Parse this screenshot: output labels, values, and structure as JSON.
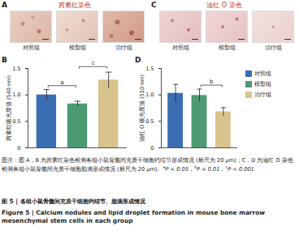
{
  "figure": {
    "panels": [
      {
        "letter": "A",
        "title": "茜素红染色",
        "images": [
          "对照组",
          "模型组",
          "治疗组"
        ]
      },
      {
        "letter": "C",
        "title": "油红 O 染色",
        "images": [
          "对照组",
          "模型组",
          "治疗组"
        ]
      }
    ],
    "caption": "图注：图 A，B 为茜素红染色检测各组小鼠骨髓间充质干细胞钙结节形成情况 (标尺为 20 μm)；C，D 为油红 O 染色检测各组小鼠骨髓间充质干细胞脂滴形成情况 (标尺为 20 μm)。",
    "significance_notes": [
      {
        "mark": "a",
        "text": "P < 0.05"
      },
      {
        "mark": "b",
        "text": "P < 0.01"
      },
      {
        "mark": "c",
        "text": "P < 0.001"
      }
    ],
    "title_zh": "图 5 | 各组小鼠骨髓间充质干细胞钙结节、脂滴形成情况",
    "title_en": "Figure 5 | Calcium nodules and lipid droplet formation in mouse bone marrow mesenchymal stem cells in each group"
  },
  "chart_data": [
    {
      "type": "bar",
      "panel": "B",
      "ylabel": "茜素红吸光度值 (540 nm)",
      "categories": [
        "对照组",
        "模型组",
        "治疗组"
      ],
      "values": [
        1.0,
        0.83,
        1.28
      ],
      "errors": [
        0.1,
        0.05,
        0.15
      ],
      "colors": [
        "#3b6db3",
        "#4c9a72",
        "#d9c38c"
      ],
      "ylim": [
        0,
        1.5
      ],
      "yticks": [
        0,
        0.5,
        {
          "value": 1,
          "label": "1.0"
        },
        1.5
      ],
      "tick_labels": "y",
      "significance": [
        {
          "from": "对照组",
          "to": "模型组",
          "label": "a"
        },
        {
          "from": "模型组",
          "to": "治疗组",
          "label": "c"
        }
      ]
    },
    {
      "type": "bar",
      "panel": "D",
      "ylabel": "油红 O 吸光度值 (510 nm)",
      "categories": [
        "对照组",
        "模型组",
        "治疗组"
      ],
      "values": [
        1.03,
        0.99,
        0.68
      ],
      "errors": [
        0.17,
        0.12,
        0.08
      ],
      "colors": [
        "#3b6db3",
        "#4c9a72",
        "#d9c38c"
      ],
      "ylim": [
        0,
        1.5
      ],
      "yticks": [
        0,
        0.5,
        {
          "value": 1,
          "label": "1.0"
        },
        1.5
      ],
      "tick_labels": "y",
      "legend": "right",
      "significance": [
        {
          "from": "模型组",
          "to": "治疗组",
          "label": "b"
        }
      ]
    }
  ]
}
